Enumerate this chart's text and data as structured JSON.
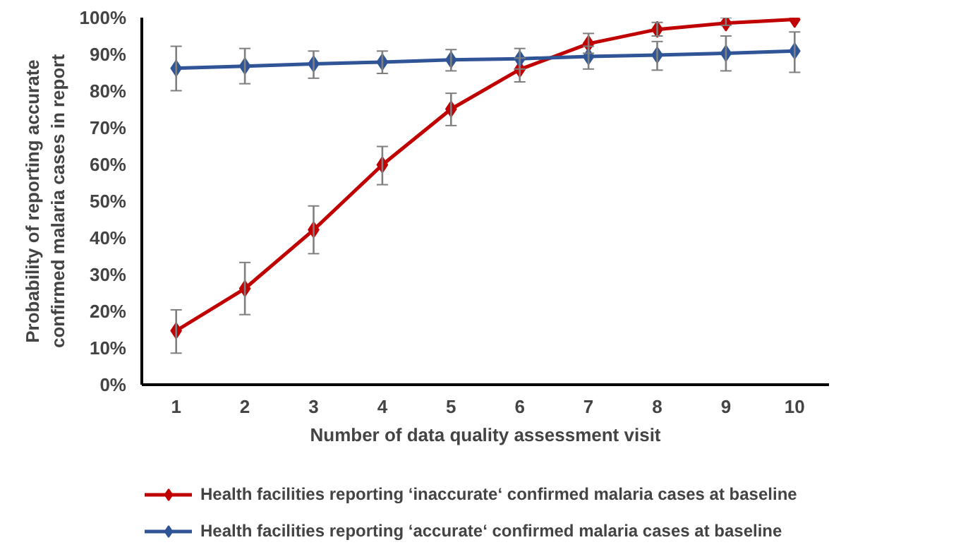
{
  "chart_data": {
    "type": "line",
    "xlabel": "Number of data quality assessment visit",
    "ylabel": "Probability of reporting accurate\nconfirmed malaria cases in report",
    "categories": [
      "1",
      "2",
      "3",
      "4",
      "5",
      "6",
      "7",
      "8",
      "9",
      "10"
    ],
    "ylim": [
      0,
      100
    ],
    "yticks": [
      {
        "value": 0,
        "label": "0%"
      },
      {
        "value": 10,
        "label": "10%"
      },
      {
        "value": 20,
        "label": "20%"
      },
      {
        "value": 30,
        "label": "30%"
      },
      {
        "value": 40,
        "label": "40%"
      },
      {
        "value": 50,
        "label": "50%"
      },
      {
        "value": 60,
        "label": "60%"
      },
      {
        "value": 70,
        "label": "70%"
      },
      {
        "value": 80,
        "label": "80%"
      },
      {
        "value": 90,
        "label": "90%"
      },
      {
        "value": 100,
        "label": "100%"
      }
    ],
    "series": [
      {
        "name": "Health facilities reporting ‘inaccurate‘ confirmed malaria cases at baseline",
        "color": "#c00000",
        "values": [
          14.7,
          26.2,
          42.2,
          59.9,
          75.1,
          85.9,
          92.9,
          96.8,
          98.5,
          99.5
        ],
        "errors": [
          [
            8.6,
            20.4
          ],
          [
            19.1,
            33.3
          ],
          [
            35.7,
            48.7
          ],
          [
            54.5,
            64.9
          ],
          [
            70.6,
            79.4
          ],
          [
            82.5,
            89.0
          ],
          [
            90.3,
            95.7
          ],
          [
            95.0,
            98.7
          ],
          [
            97.9,
            100
          ],
          null
        ]
      },
      {
        "name": "Health facilities reporting ‘accurate‘ confirmed malaria cases at baseline",
        "color": "#2f5597",
        "values": [
          86.2,
          86.8,
          87.4,
          87.9,
          88.5,
          88.8,
          89.4,
          89.8,
          90.3,
          90.9
        ],
        "errors": [
          [
            80.1,
            92.2
          ],
          [
            82.0,
            91.6
          ],
          [
            83.5,
            90.9
          ],
          [
            84.8,
            90.9
          ],
          [
            85.5,
            91.3
          ],
          [
            86.0,
            91.6
          ],
          [
            86.0,
            92.2
          ],
          [
            85.7,
            93.5
          ],
          [
            85.5,
            95.0
          ],
          [
            85.1,
            96.1
          ]
        ]
      }
    ],
    "marker": "diamond",
    "line_style": "solid",
    "grid": false,
    "legend": "bottom"
  }
}
